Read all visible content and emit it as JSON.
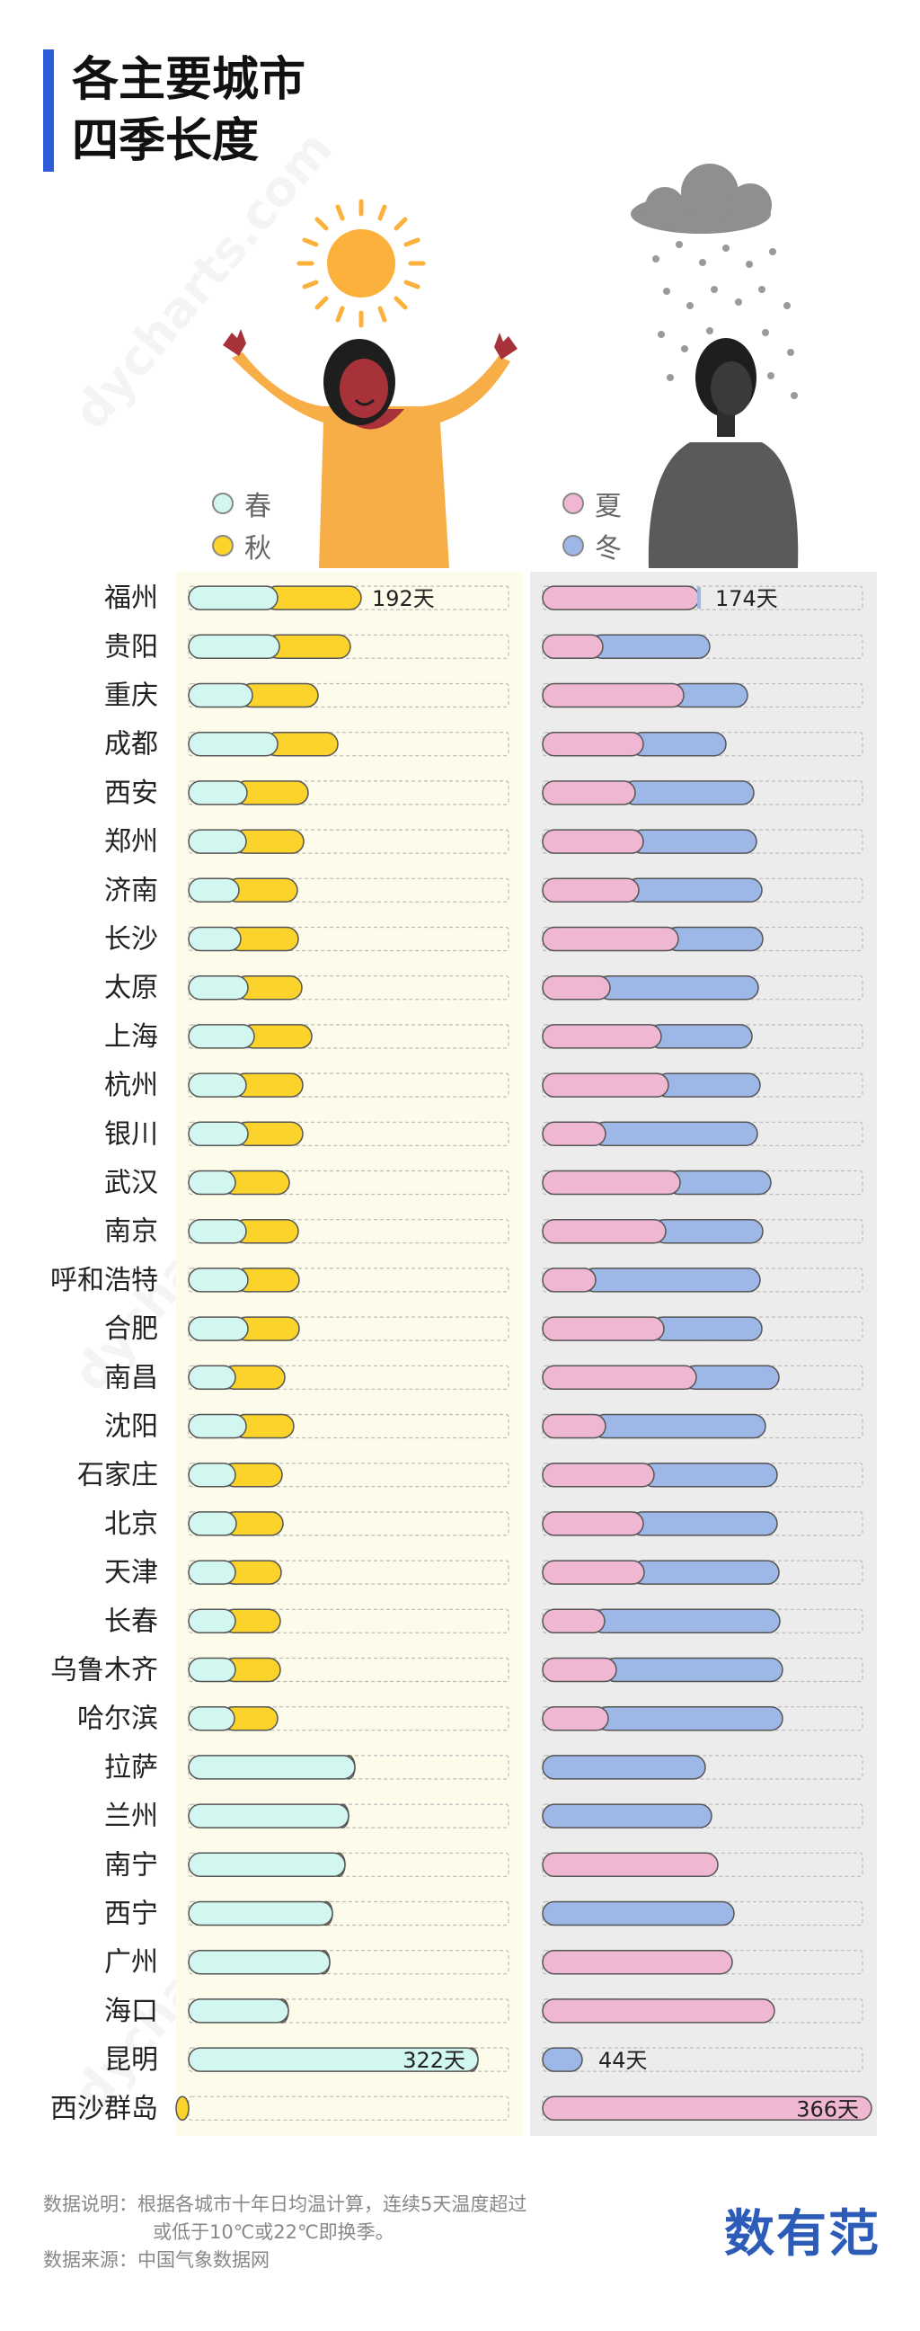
{
  "title": {
    "line1": "各主要城市",
    "line2": "四季长度"
  },
  "legend": {
    "spring": "春",
    "autumn": "秋",
    "summer": "夏",
    "winter": "冬"
  },
  "colors": {
    "spring": "#d2f6f0",
    "autumn": "#fbd32b",
    "summer": "#efb7d2",
    "winter": "#9db7e7",
    "left_panel": "#fdfbea",
    "right_panel": "#ececec",
    "sun": "#fbb13c",
    "person_warm": "#f7ae47",
    "person_gray": "#5a5a5a",
    "cloud": "#8f8f8f"
  },
  "icons": [
    "sun-icon",
    "happy-person-icon",
    "cloud-icon",
    "rain-icon",
    "sad-person-icon"
  ],
  "chart_data": {
    "type": "bar",
    "categories": [
      "福州",
      "贵阳",
      "重庆",
      "成都",
      "西安",
      "郑州",
      "济南",
      "长沙",
      "太原",
      "上海",
      "杭州",
      "银川",
      "武汉",
      "南京",
      "呼和浩特",
      "合肥",
      "南昌",
      "沈阳",
      "石家庄",
      "北京",
      "天津",
      "长春",
      "乌鲁木齐",
      "哈尔滨",
      "拉萨",
      "兰州",
      "南宁",
      "西宁",
      "广州",
      "海口",
      "昆明",
      "西沙群岛"
    ],
    "xlim": [
      0,
      366
    ],
    "series": [
      {
        "name": "春",
        "values": [
          99,
          101,
          71,
          99,
          65,
          64,
          56,
          58,
          66,
          73,
          64,
          66,
          52,
          64,
          66,
          66,
          52,
          64,
          52,
          53,
          52,
          52,
          52,
          51,
          185,
          178,
          174,
          160,
          157,
          111,
          322,
          0
        ]
      },
      {
        "name": "秋",
        "values": [
          93,
          79,
          73,
          67,
          68,
          64,
          65,
          64,
          60,
          64,
          63,
          61,
          60,
          58,
          57,
          57,
          55,
          53,
          52,
          52,
          51,
          50,
          50,
          48,
          0,
          0,
          0,
          0,
          0,
          0,
          0,
          0
        ]
      },
      {
        "name": "夏",
        "values": [
          174,
          67,
          157,
          112,
          103,
          112,
          107,
          151,
          75,
          132,
          140,
          70,
          153,
          137,
          59,
          135,
          171,
          70,
          124,
          112,
          113,
          69,
          82,
          73,
          0,
          0,
          195,
          0,
          211,
          258,
          0,
          366
        ]
      },
      {
        "name": "冬",
        "values": [
          0,
          119,
          71,
          92,
          132,
          126,
          137,
          94,
          165,
          101,
          102,
          169,
          101,
          108,
          183,
          109,
          92,
          178,
          137,
          149,
          150,
          195,
          185,
          194,
          181,
          188,
          0,
          213,
          0,
          0,
          44,
          0
        ]
      }
    ],
    "annotations": [
      {
        "city": "福州",
        "panel": "left",
        "text": "192天"
      },
      {
        "city": "福州",
        "panel": "right",
        "text": "174天"
      },
      {
        "city": "昆明",
        "panel": "left",
        "text": "322天"
      },
      {
        "city": "昆明",
        "panel": "right",
        "text": "44天"
      },
      {
        "city": "西沙群岛",
        "panel": "right",
        "text": "366天"
      }
    ]
  },
  "footer": {
    "note_line1": "数据说明：根据各城市十年日均温计算，连续5天温度超过",
    "note_line2": "或低于10℃或22℃即换季。",
    "source": "数据来源：中国气象数据网"
  },
  "brand": "数有范",
  "watermark": "dycharts.com"
}
